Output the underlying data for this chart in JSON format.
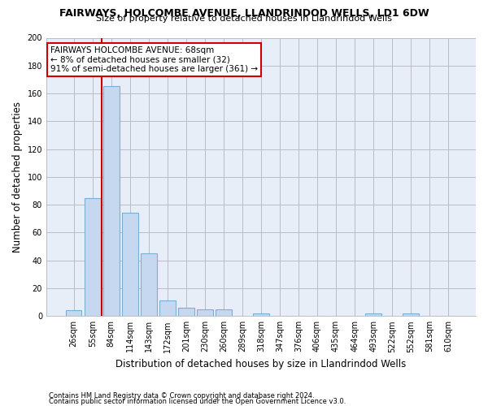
{
  "title1": "FAIRWAYS, HOLCOMBE AVENUE, LLANDRINDOD WELLS, LD1 6DW",
  "title2": "Size of property relative to detached houses in Llandrindod Wells",
  "xlabel": "Distribution of detached houses by size in Llandrindod Wells",
  "ylabel": "Number of detached properties",
  "footer1": "Contains HM Land Registry data © Crown copyright and database right 2024.",
  "footer2": "Contains public sector information licensed under the Open Government Licence v3.0.",
  "categories": [
    "26sqm",
    "55sqm",
    "84sqm",
    "114sqm",
    "143sqm",
    "172sqm",
    "201sqm",
    "230sqm",
    "260sqm",
    "289sqm",
    "318sqm",
    "347sqm",
    "376sqm",
    "406sqm",
    "435sqm",
    "464sqm",
    "493sqm",
    "522sqm",
    "552sqm",
    "581sqm",
    "610sqm"
  ],
  "values": [
    4,
    85,
    165,
    74,
    45,
    11,
    6,
    5,
    5,
    0,
    2,
    0,
    0,
    0,
    0,
    0,
    2,
    0,
    2,
    0,
    0
  ],
  "bar_color": "#c5d8f0",
  "bar_edge_color": "#7aafd4",
  "grid_color": "#bbbbcc",
  "bg_color": "#ffffff",
  "plot_bg_color": "#e8eef8",
  "vline_x": 1.5,
  "vline_color": "#cc0000",
  "annotation_line1": "FAIRWAYS HOLCOMBE AVENUE: 68sqm",
  "annotation_line2": "← 8% of detached houses are smaller (32)",
  "annotation_line3": "91% of semi-detached houses are larger (361) →",
  "annotation_box_color": "#ffffff",
  "annotation_box_edge": "#cc0000",
  "ylim": [
    0,
    200
  ],
  "yticks": [
    0,
    20,
    40,
    60,
    80,
    100,
    120,
    140,
    160,
    180,
    200
  ]
}
